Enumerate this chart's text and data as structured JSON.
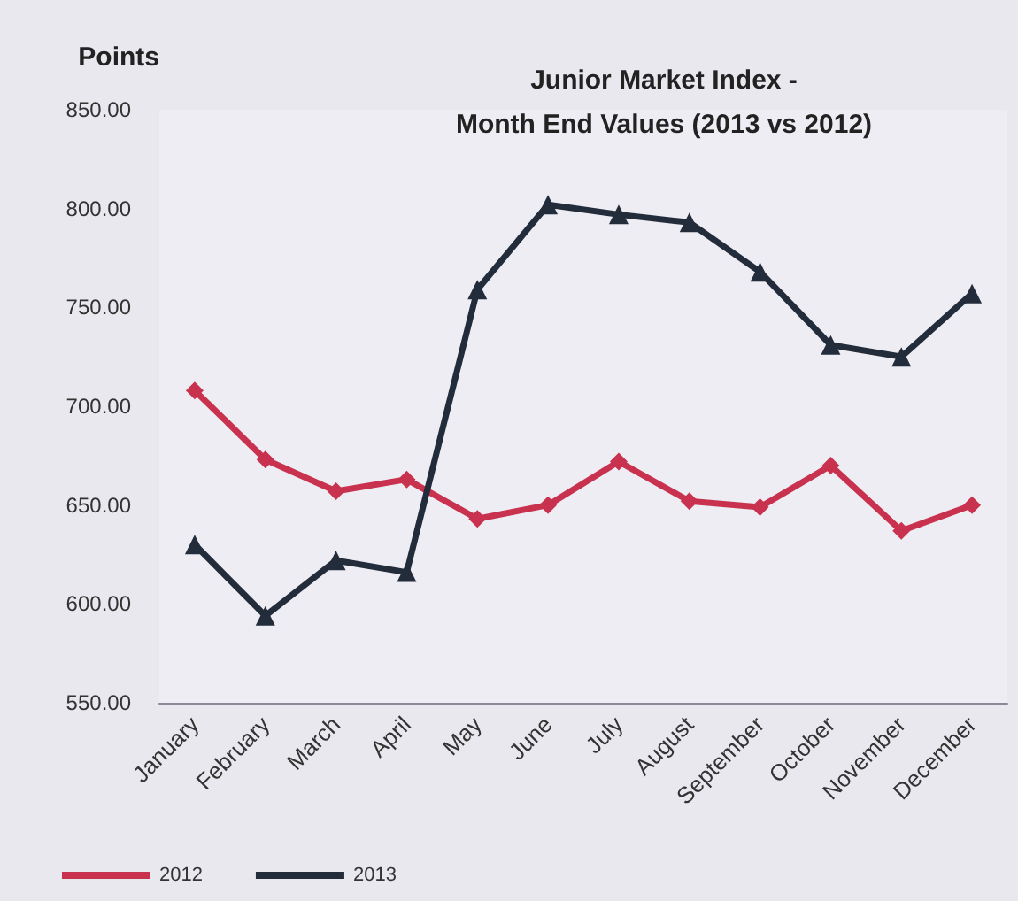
{
  "chart_data": {
    "type": "line",
    "title": "Junior Market Index -\nMonth End Values (2013 vs 2012)",
    "ylabel": "Points",
    "categories": [
      "January",
      "February",
      "March",
      "April",
      "May",
      "June",
      "July",
      "August",
      "September",
      "October",
      "November",
      "December"
    ],
    "series": [
      {
        "name": "2012",
        "color": "#c8324e",
        "marker": "diamond",
        "values": [
          708,
          673,
          657,
          663,
          643,
          650,
          672,
          652,
          649,
          670,
          637,
          650
        ]
      },
      {
        "name": "2013",
        "color": "#222c3a",
        "marker": "triangle",
        "values": [
          630,
          594,
          622,
          616,
          759,
          802,
          797,
          793,
          768,
          731,
          725,
          757
        ]
      }
    ],
    "ylim": [
      550,
      850
    ],
    "yticks": [
      {
        "value": 550,
        "label": "550.00"
      },
      {
        "value": 600,
        "label": "600.00"
      },
      {
        "value": 650,
        "label": "650.00"
      },
      {
        "value": 700,
        "label": "700.00"
      },
      {
        "value": 750,
        "label": "750.00"
      },
      {
        "value": 800,
        "label": "800.00"
      },
      {
        "value": 850,
        "label": "850.00"
      }
    ],
    "grid": false,
    "legend": "bottom left"
  }
}
